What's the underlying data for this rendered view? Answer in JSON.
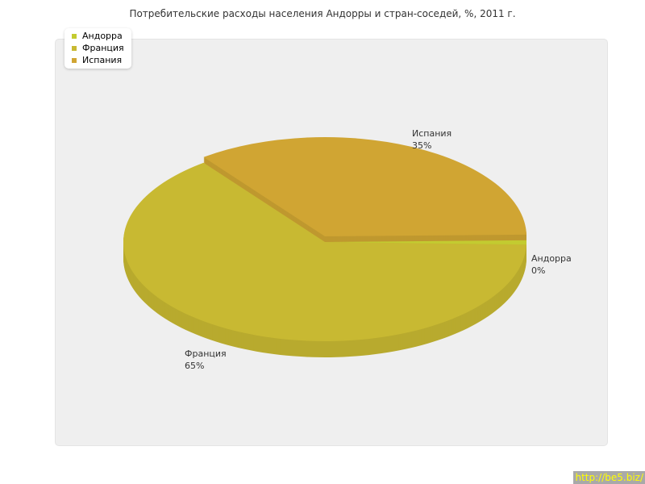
{
  "chart_data": {
    "type": "pie",
    "title": "Потребительские расходы населения Андорры и стран-соседей, %, 2011 г.",
    "slices": [
      {
        "name": "Андорра",
        "value": 0,
        "label": "0%",
        "color": "#c3cb30"
      },
      {
        "name": "Франция",
        "value": 65,
        "label": "65%",
        "color": "#c8b932"
      },
      {
        "name": "Испания",
        "value": 35,
        "label": "35%",
        "color": "#d0a533"
      }
    ],
    "legend": "top-left",
    "three_d": true
  },
  "credit": "http://be5.biz/"
}
